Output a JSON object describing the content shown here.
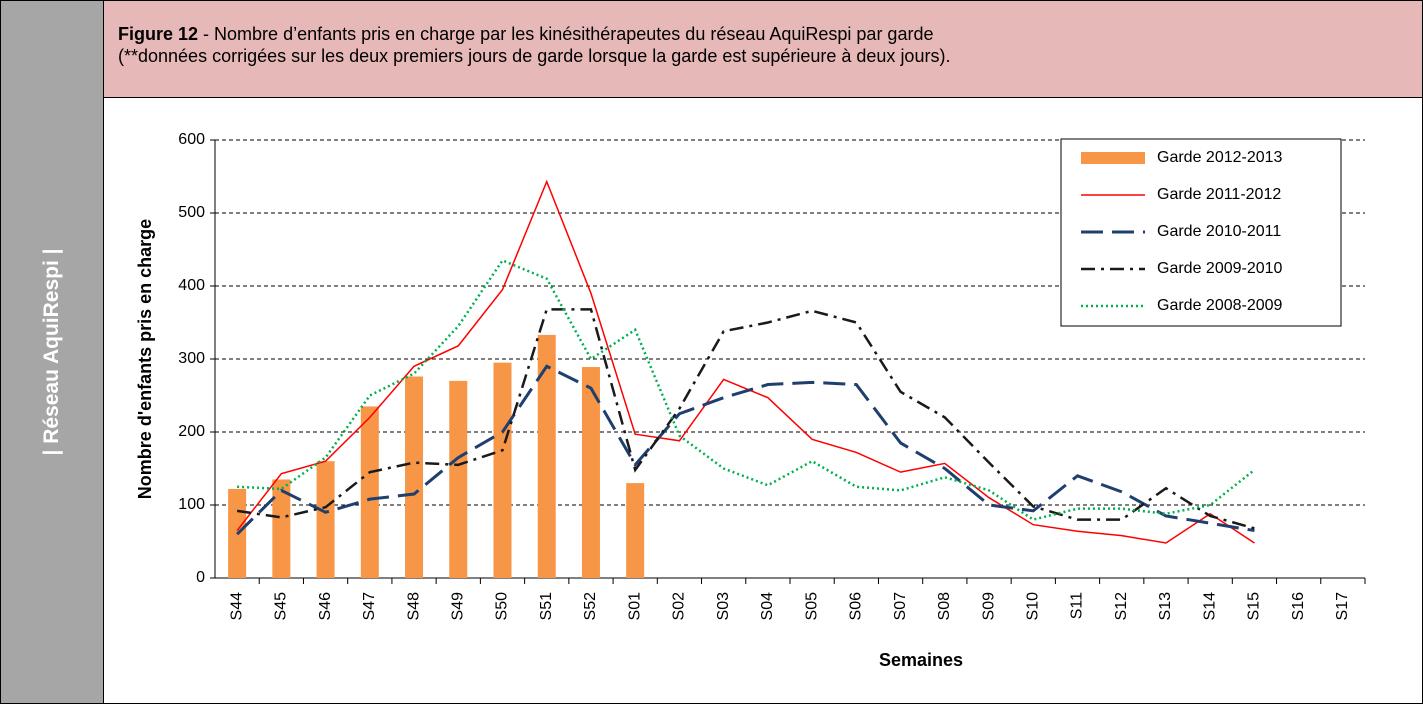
{
  "sidebar": "| Réseau AquiRespi |",
  "header": {
    "label": "Figure 12",
    "line1": "- Nombre d’enfants pris en charge par les kinésithérapeutes du réseau AquiRespi par garde",
    "line2": "(**données corrigées sur les deux premiers jours de garde lorsque la garde est supérieure à deux jours)."
  },
  "chart_data": {
    "type": "combo",
    "x_label": "Semaines",
    "y_label": "Nombre d'enfants  pris en charge",
    "categories": [
      "S44",
      "S45",
      "S46",
      "S47",
      "S48",
      "S49",
      "S50",
      "S51",
      "S52",
      "S01",
      "S02",
      "S03",
      "S04",
      "S05",
      "S06",
      "S07",
      "S08",
      "S09",
      "S10",
      "S11",
      "S12",
      "S13",
      "S14",
      "S15",
      "S16",
      "S17"
    ],
    "ylim": [
      0,
      600
    ],
    "yticks": [
      0,
      100,
      200,
      300,
      400,
      500,
      600
    ],
    "grid": true,
    "legend": "upper right",
    "series": [
      {
        "name": "Garde 2012-2013",
        "type": "bar",
        "color": "#f79646",
        "values": [
          122,
          135,
          160,
          235,
          276,
          270,
          295,
          333,
          289,
          130,
          null,
          null,
          null,
          null,
          null,
          null,
          null,
          null,
          null,
          null,
          null,
          null,
          null,
          null,
          null,
          null
        ]
      },
      {
        "name": "Garde 2011-2012",
        "type": "line",
        "style": "solid",
        "color": "#ff0000",
        "values": [
          65,
          143,
          160,
          220,
          290,
          318,
          395,
          543,
          390,
          197,
          188,
          272,
          247,
          190,
          172,
          145,
          157,
          110,
          73,
          64,
          58,
          48,
          88,
          48,
          null,
          null
        ]
      },
      {
        "name": "Garde 2010-2011",
        "type": "line",
        "style": "dashed",
        "color": "#1f3f6e",
        "values": [
          60,
          120,
          90,
          108,
          115,
          165,
          200,
          290,
          260,
          155,
          225,
          247,
          265,
          268,
          265,
          185,
          150,
          100,
          92,
          140,
          118,
          85,
          75,
          65,
          null,
          null
        ]
      },
      {
        "name": "Garde 2009-2010",
        "type": "line",
        "style": "dashdot",
        "color": "#1a1a1a",
        "values": [
          92,
          83,
          97,
          145,
          158,
          155,
          175,
          368,
          368,
          148,
          232,
          338,
          350,
          366,
          350,
          255,
          220,
          158,
          98,
          80,
          80,
          123,
          85,
          68,
          null,
          null
        ]
      },
      {
        "name": "Garde 2008-2009",
        "type": "line",
        "style": "dotted",
        "color": "#00b050",
        "values": [
          125,
          122,
          165,
          250,
          280,
          345,
          435,
          410,
          300,
          340,
          195,
          150,
          127,
          160,
          125,
          120,
          138,
          120,
          80,
          95,
          95,
          88,
          100,
          148,
          null,
          null
        ]
      }
    ]
  }
}
